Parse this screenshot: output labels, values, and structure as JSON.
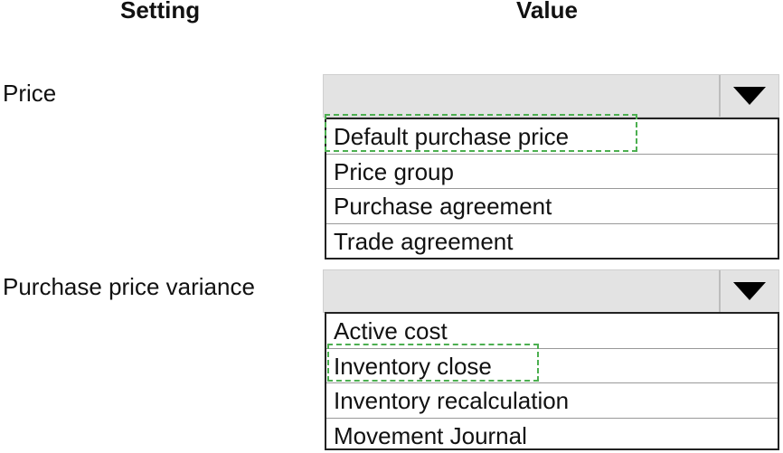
{
  "headers": {
    "setting": "Setting",
    "value": "Value"
  },
  "rows": [
    {
      "label": "Price",
      "options": [
        "Default purchase price",
        "Price group",
        "Purchase agreement",
        "Trade agreement"
      ],
      "selected": "Default purchase price"
    },
    {
      "label": "Purchase price variance",
      "options": [
        "Active cost",
        "Inventory close",
        "Inventory recalculation",
        "Movement Journal"
      ],
      "selected": "Inventory close"
    }
  ],
  "colors": {
    "selection_outline": "#4caf50",
    "dropdown_bg": "#e3e3e3"
  },
  "icons": {
    "dropdown": "triangle-down-icon"
  }
}
